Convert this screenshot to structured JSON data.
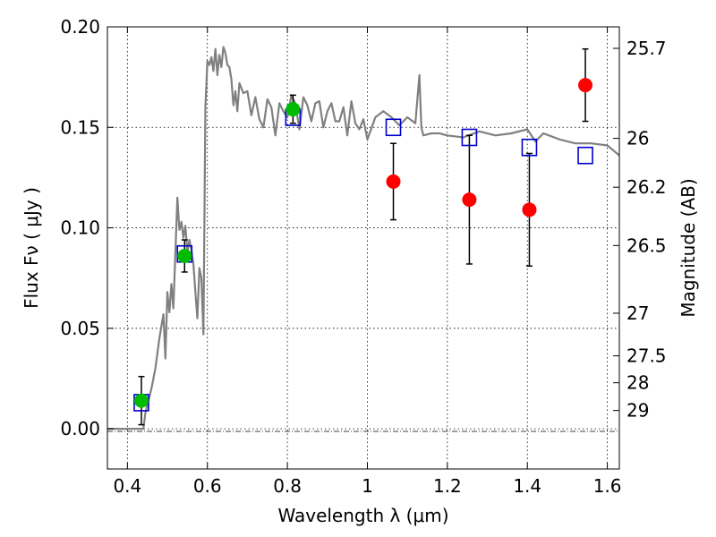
{
  "chart_data": {
    "type": "scatter",
    "xlabel": "Wavelength  λ (μm)",
    "ylabel": "Flux  Fν  ( μJy )",
    "ylabel_right": "Magnitude (AB)",
    "xlim": [
      0.35,
      1.63
    ],
    "ylim": [
      -0.02,
      0.2
    ],
    "grid": true,
    "x_ticks": [
      0.4,
      0.6,
      0.8,
      1.0,
      1.2,
      1.4,
      1.6
    ],
    "x_tick_labels": [
      "0.4",
      "0.6",
      "0.8",
      "1",
      "1.2",
      "1.4",
      "1.6"
    ],
    "y_ticks": [
      0.0,
      0.05,
      0.1,
      0.15,
      0.2
    ],
    "y_tick_labels": [
      "0.00",
      "0.05",
      "0.10",
      "0.15",
      "0.20"
    ],
    "right_ticks": [
      {
        "label": "25.7",
        "flux": 0.1893
      },
      {
        "label": "26",
        "flux": 0.1445
      },
      {
        "label": "26.2",
        "flux": 0.1202
      },
      {
        "label": "26.5",
        "flux": 0.0912
      },
      {
        "label": "27",
        "flux": 0.0575
      },
      {
        "label": "27.5",
        "flux": 0.0363
      },
      {
        "label": "28",
        "flux": 0.0229
      },
      {
        "label": "29",
        "flux": 0.0091
      }
    ],
    "model_color": "#808080",
    "model_spectrum": {
      "x": [
        0.35,
        0.44,
        0.445,
        0.46,
        0.47,
        0.48,
        0.49,
        0.495,
        0.5,
        0.505,
        0.51,
        0.515,
        0.52,
        0.525,
        0.53,
        0.535,
        0.54,
        0.545,
        0.55,
        0.555,
        0.56,
        0.565,
        0.57,
        0.575,
        0.58,
        0.585,
        0.59,
        0.595,
        0.6,
        0.605,
        0.61,
        0.615,
        0.62,
        0.625,
        0.63,
        0.635,
        0.64,
        0.645,
        0.65,
        0.655,
        0.66,
        0.665,
        0.67,
        0.675,
        0.68,
        0.69,
        0.7,
        0.71,
        0.72,
        0.73,
        0.74,
        0.75,
        0.76,
        0.77,
        0.78,
        0.79,
        0.8,
        0.81,
        0.82,
        0.83,
        0.84,
        0.85,
        0.86,
        0.87,
        0.88,
        0.89,
        0.9,
        0.91,
        0.92,
        0.93,
        0.94,
        0.95,
        0.96,
        0.97,
        0.98,
        0.99,
        1.0,
        1.02,
        1.04,
        1.06,
        1.08,
        1.1,
        1.12,
        1.13,
        1.135,
        1.14,
        1.16,
        1.18,
        1.2,
        1.24,
        1.28,
        1.32,
        1.36,
        1.4,
        1.42,
        1.44,
        1.48,
        1.52,
        1.56,
        1.6,
        1.63
      ],
      "y": [
        0.0,
        0.0,
        0.008,
        0.02,
        0.03,
        0.045,
        0.057,
        0.035,
        0.068,
        0.058,
        0.072,
        0.06,
        0.088,
        0.115,
        0.099,
        0.103,
        0.095,
        0.101,
        0.088,
        0.094,
        0.089,
        0.082,
        0.068,
        0.055,
        0.08,
        0.075,
        0.047,
        0.16,
        0.183,
        0.181,
        0.185,
        0.178,
        0.189,
        0.176,
        0.186,
        0.18,
        0.19,
        0.187,
        0.181,
        0.18,
        0.174,
        0.161,
        0.168,
        0.158,
        0.172,
        0.167,
        0.168,
        0.156,
        0.165,
        0.154,
        0.15,
        0.164,
        0.16,
        0.146,
        0.162,
        0.158,
        0.155,
        0.166,
        0.162,
        0.149,
        0.165,
        0.161,
        0.153,
        0.162,
        0.163,
        0.15,
        0.158,
        0.162,
        0.153,
        0.153,
        0.16,
        0.146,
        0.163,
        0.152,
        0.149,
        0.154,
        0.144,
        0.155,
        0.158,
        0.155,
        0.151,
        0.155,
        0.152,
        0.176,
        0.15,
        0.146,
        0.147,
        0.147,
        0.146,
        0.145,
        0.148,
        0.146,
        0.147,
        0.149,
        0.143,
        0.147,
        0.144,
        0.142,
        0.142,
        0.141,
        0.136
      ]
    },
    "series": [
      {
        "marker": "square-open",
        "color": "#0000cc",
        "x": [
          0.435,
          0.543,
          0.814,
          1.065,
          1.255,
          1.405,
          1.545
        ],
        "y": [
          0.013,
          0.087,
          0.155,
          0.15,
          0.145,
          0.14,
          0.136
        ]
      },
      {
        "marker": "circle-filled",
        "color": "#00bb00",
        "x": [
          0.435,
          0.543,
          0.814
        ],
        "y": [
          0.014,
          0.086,
          0.159
        ],
        "err": [
          0.012,
          0.008,
          0.007
        ]
      },
      {
        "marker": "circle-filled",
        "color": "#ff0000",
        "x": [
          1.065,
          1.255,
          1.405,
          1.545
        ],
        "y": [
          0.123,
          0.114,
          0.109,
          0.171
        ],
        "err": [
          0.019,
          0.032,
          0.028,
          0.018
        ]
      }
    ]
  }
}
